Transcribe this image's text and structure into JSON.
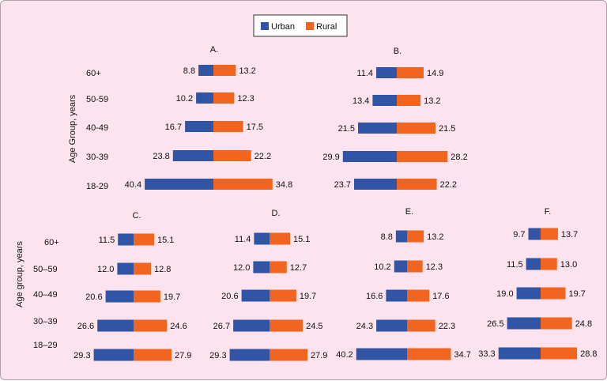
{
  "legend": [
    {
      "label": "Urban",
      "color": "#2f55a4"
    },
    {
      "label": "Rural",
      "color": "#f1651f"
    }
  ],
  "colors": {
    "urban": "#2f55a4",
    "rural": "#f1651f",
    "background": "#fde3ee"
  },
  "chart_data": [
    {
      "type": "bar",
      "title": "A.",
      "ylabel": "Age Group, years",
      "categories": [
        "60+",
        "50-59",
        "40-49",
        "30-39",
        "18-29"
      ],
      "series": [
        {
          "name": "Urban",
          "values": [
            8.8,
            10.2,
            16.7,
            23.8,
            40.4
          ]
        },
        {
          "name": "Rural",
          "values": [
            13.2,
            12.3,
            17.5,
            22.2,
            34.8
          ]
        }
      ]
    },
    {
      "type": "bar",
      "title": "B.",
      "categories": [
        "60+",
        "50-59",
        "40-49",
        "30-39",
        "18-29"
      ],
      "series": [
        {
          "name": "Urban",
          "values": [
            11.4,
            13.4,
            21.5,
            29.9,
            23.7
          ]
        },
        {
          "name": "Rural",
          "values": [
            14.9,
            13.2,
            21.5,
            28.2,
            22.2
          ]
        }
      ]
    },
    {
      "type": "bar",
      "title": "C.",
      "ylabel": "Age group, years",
      "categories": [
        "60+",
        "50–59",
        "40–49",
        "30–39",
        "18–29"
      ],
      "series": [
        {
          "name": "Urban",
          "values": [
            11.5,
            12.0,
            20.6,
            26.6,
            29.3
          ]
        },
        {
          "name": "Rural",
          "values": [
            15.1,
            12.8,
            19.7,
            24.6,
            27.9
          ]
        }
      ]
    },
    {
      "type": "bar",
      "title": "D.",
      "categories": [
        "60+",
        "50–59",
        "40–49",
        "30–39",
        "18–29"
      ],
      "series": [
        {
          "name": "Urban",
          "values": [
            11.4,
            12.0,
            20.6,
            26.7,
            29.3
          ]
        },
        {
          "name": "Rural",
          "values": [
            15.1,
            12.7,
            19.7,
            24.5,
            27.9
          ]
        }
      ]
    },
    {
      "type": "bar",
      "title": "E.",
      "categories": [
        "60+",
        "50–59",
        "40–49",
        "30–39",
        "18–29"
      ],
      "series": [
        {
          "name": "Urban",
          "values": [
            8.8,
            10.2,
            16.6,
            24.3,
            40.2
          ]
        },
        {
          "name": "Rural",
          "values": [
            13.2,
            12.3,
            17.6,
            22.3,
            34.7
          ]
        }
      ]
    },
    {
      "type": "bar",
      "title": "F.",
      "categories": [
        "60+",
        "50–59",
        "40–49",
        "30–39",
        "18–29"
      ],
      "series": [
        {
          "name": "Urban",
          "values": [
            9.7,
            11.5,
            19.0,
            26.5,
            33.3
          ]
        },
        {
          "name": "Rural",
          "values": [
            13.7,
            13.0,
            19.7,
            24.8,
            28.8
          ]
        }
      ]
    }
  ]
}
